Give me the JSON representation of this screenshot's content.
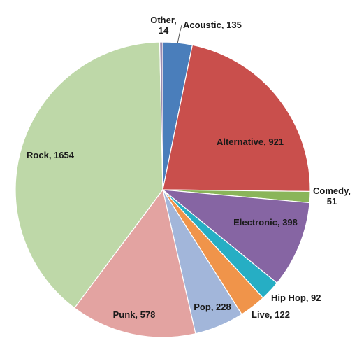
{
  "chart_data": {
    "type": "pie",
    "title": "",
    "slices": [
      {
        "name": "Acoustic",
        "value": 135,
        "color": "#4a7ebb",
        "label": "Acoustic, 135"
      },
      {
        "name": "Alternative",
        "value": 921,
        "color": "#c94f4c",
        "label": "Alternative, 921"
      },
      {
        "name": "Comedy",
        "value": 51,
        "color": "#8ab55a",
        "label": "Comedy,",
        "label2": "51"
      },
      {
        "name": "Electronic",
        "value": 398,
        "color": "#8665a3",
        "label": "Electronic, 398"
      },
      {
        "name": "Hip Hop",
        "value": 92,
        "color": "#26aec4",
        "label": "Hip Hop, 92"
      },
      {
        "name": "Live",
        "value": 122,
        "color": "#f0944a",
        "label": "Live, 122"
      },
      {
        "name": "Pop",
        "value": 228,
        "color": "#a2b6da",
        "label": "Pop, 228"
      },
      {
        "name": "Punk",
        "value": 578,
        "color": "#e3a3a1",
        "label": "Punk, 578"
      },
      {
        "name": "Rock",
        "value": 1654,
        "color": "#bed8a8",
        "label": "Rock, 1654"
      },
      {
        "name": "Other",
        "value": 14,
        "color": "#9a8bb0",
        "label": "Other,",
        "label2": "14"
      }
    ]
  }
}
